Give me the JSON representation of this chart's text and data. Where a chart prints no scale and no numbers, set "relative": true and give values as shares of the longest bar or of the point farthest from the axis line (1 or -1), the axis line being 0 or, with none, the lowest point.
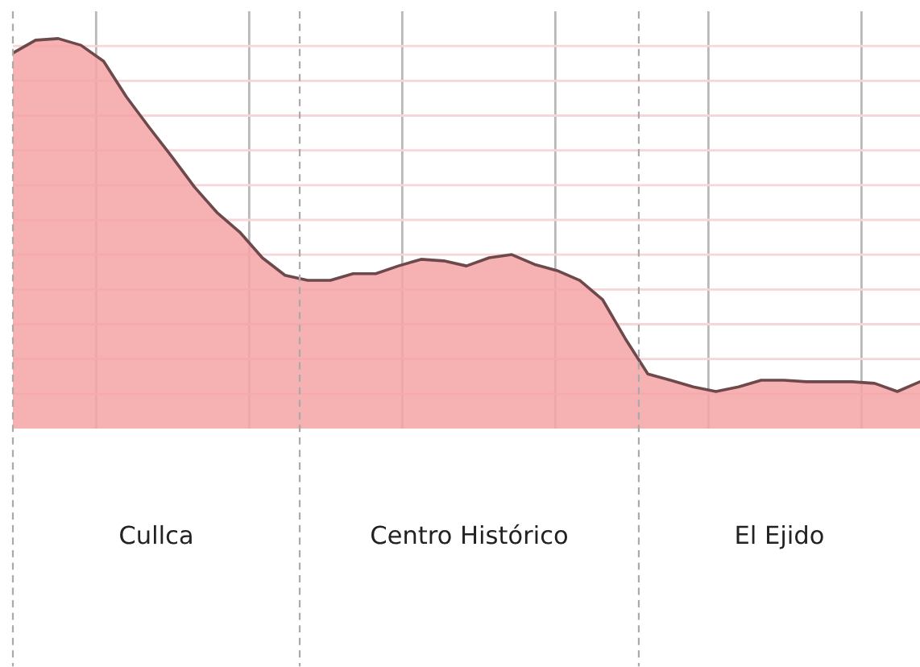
{
  "chart_data": {
    "type": "area",
    "relative": true,
    "grid": true,
    "categories": [
      null,
      null,
      null,
      null,
      null,
      null,
      null,
      null,
      null,
      null,
      null,
      null,
      null,
      null,
      null,
      null,
      null,
      null,
      null,
      null,
      null,
      null,
      null,
      null,
      null,
      null,
      null,
      null,
      null,
      null,
      null,
      null,
      null,
      null,
      null,
      null,
      null,
      null,
      null,
      null,
      null
    ],
    "series": [
      {
        "color": "#f5a3a6",
        "values": [
          0.963,
          0.996,
          1,
          0.983,
          0.942,
          0.851,
          0.773,
          0.698,
          0.62,
          0.554,
          0.504,
          0.438,
          0.393,
          0.38,
          0.38,
          0.397,
          0.397,
          0.417,
          0.434,
          0.43,
          0.417,
          0.438,
          0.446,
          0.421,
          0.405,
          0.38,
          0.331,
          0.231,
          0.14,
          0.124,
          0.107,
          0.095,
          0.107,
          0.124,
          0.124,
          0.12,
          0.12,
          0.12,
          0.116,
          0.095,
          0.12
        ]
      }
    ],
    "annotations": [
      "Cullca",
      "Centro Histórico",
      "El Ejido"
    ]
  }
}
